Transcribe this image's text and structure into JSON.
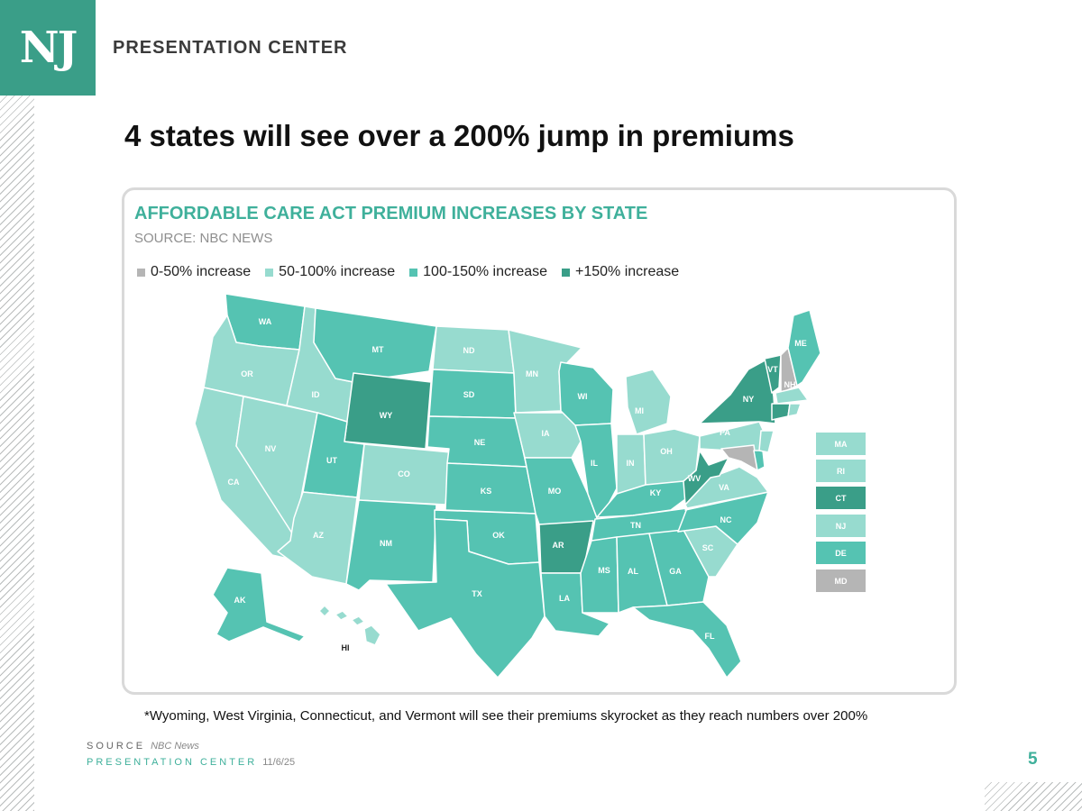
{
  "header": {
    "logo_text": "NJ",
    "brand": "PRESENTATION CENTER"
  },
  "slide": {
    "title": "4 states will see over a 200% jump in premiums",
    "footnote": "*Wyoming, West Virginia, Connecticut, and Vermont will see their premiums skyrocket as they reach numbers over 200%",
    "page_number": "5"
  },
  "chart": {
    "title": "AFFORDABLE CARE ACT PREMIUM INCREASES BY STATE",
    "source": "SOURCE: NBC NEWS"
  },
  "legend": [
    {
      "label": "0-50% increase",
      "color": "#b5b5b5"
    },
    {
      "label": "50-100% increase",
      "color": "#97dbcf"
    },
    {
      "label": "100-150% increase",
      "color": "#55c3b2"
    },
    {
      "label": "+150% increase",
      "color": "#3a9e88"
    }
  ],
  "chart_data": {
    "type": "choropleth",
    "categories": {
      "low": "0-50% increase",
      "mid": "50-100% increase",
      "high": "100-150% increase",
      "top": "+150% increase"
    },
    "states": {
      "WA": "high",
      "OR": "mid",
      "CA": "mid",
      "NV": "mid",
      "ID": "mid",
      "MT": "high",
      "WY": "top",
      "UT": "high",
      "AZ": "mid",
      "CO": "mid",
      "NM": "high",
      "ND": "mid",
      "SD": "high",
      "NE": "high",
      "KS": "high",
      "OK": "high",
      "TX": "high",
      "MN": "mid",
      "IA": "mid",
      "MO": "high",
      "AR": "top",
      "LA": "high",
      "WI": "high",
      "IL": "high",
      "MI": "mid",
      "IN": "mid",
      "OH": "mid",
      "KY": "high",
      "TN": "high",
      "MS": "high",
      "AL": "high",
      "GA": "high",
      "FL": "high",
      "SC": "mid",
      "NC": "high",
      "VA": "mid",
      "WV": "top",
      "PA": "mid",
      "NY": "top",
      "VT": "top",
      "NH": "low",
      "ME": "high",
      "MA": "mid",
      "RI": "mid",
      "CT": "top",
      "NJ": "mid",
      "DE": "high",
      "MD": "low",
      "AK": "high",
      "HI": "mid"
    }
  },
  "northeast_boxes": [
    {
      "state": "MA",
      "category": "mid"
    },
    {
      "state": "RI",
      "category": "mid"
    },
    {
      "state": "CT",
      "category": "top"
    },
    {
      "state": "NJ",
      "category": "mid"
    },
    {
      "state": "DE",
      "category": "high"
    },
    {
      "state": "MD",
      "category": "low"
    }
  ],
  "footer": {
    "source_label": "SOURCE",
    "source_value": "NBC News",
    "center_label": "PRESENTATION CENTER",
    "date": "11/6/25"
  }
}
